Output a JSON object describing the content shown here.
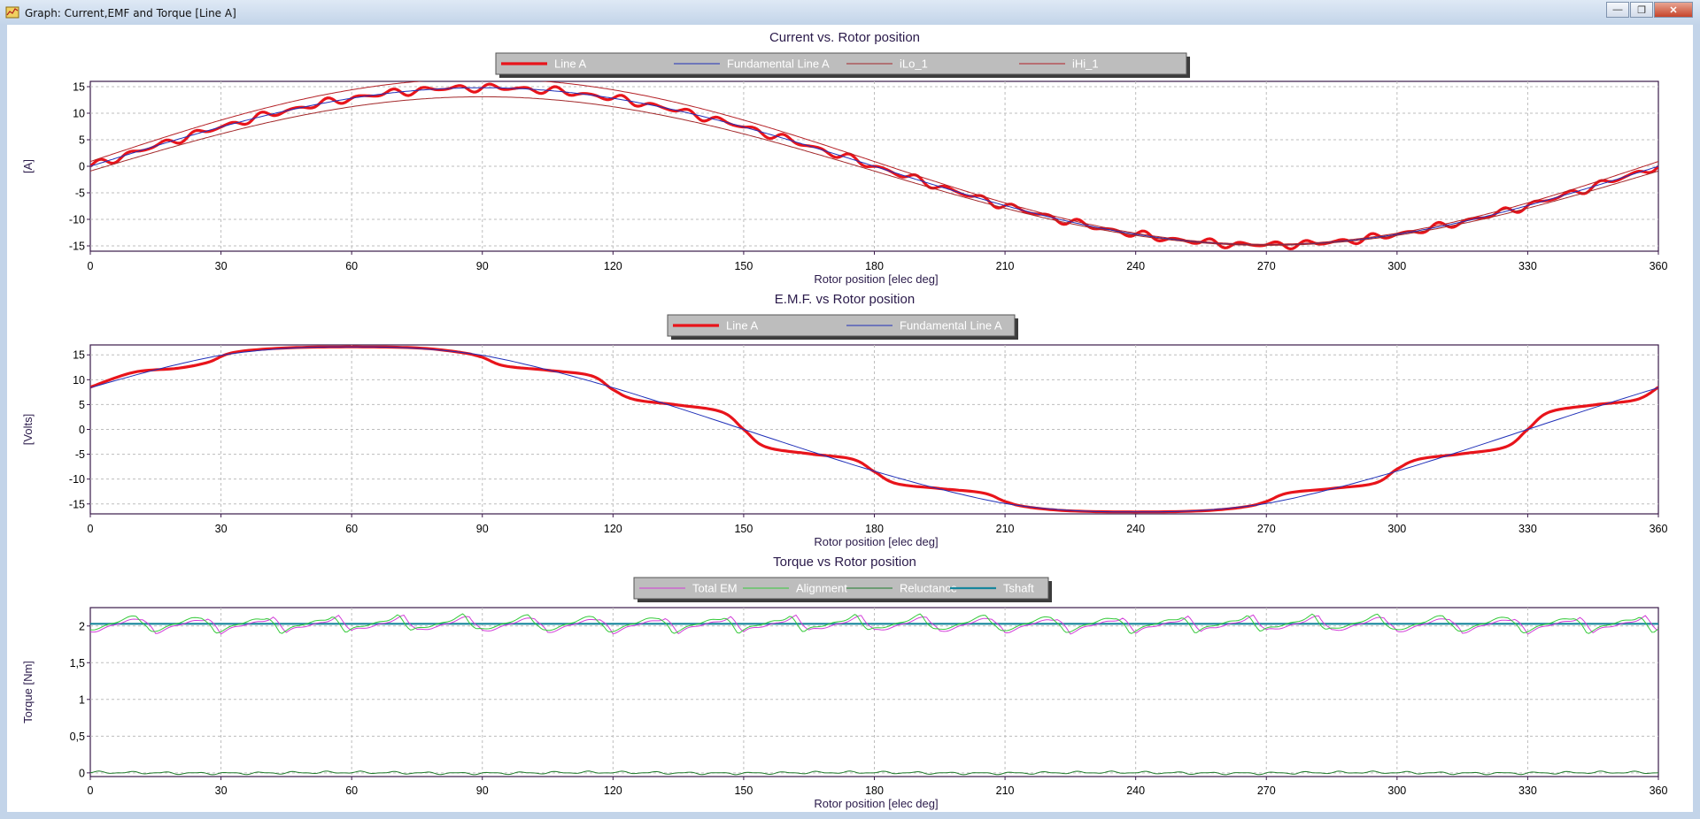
{
  "window": {
    "title": "Graph: Current,EMF and Torque [Line A]",
    "buttons": {
      "minimize": "—",
      "maximize": "❐",
      "close": "✕"
    }
  },
  "chart_data": [
    {
      "type": "line",
      "title": "Current vs. Rotor position",
      "xlabel": "Rotor position [elec deg]",
      "ylabel": "[A]",
      "xlim": [
        0,
        360
      ],
      "ylim": [
        -16,
        16
      ],
      "xticks": [
        "0",
        "30",
        "60",
        "90",
        "120",
        "150",
        "180",
        "210",
        "240",
        "270",
        "300",
        "330",
        "360"
      ],
      "yticks": [
        {
          "v": 15,
          "label": "15"
        },
        {
          "v": 10,
          "label": "10"
        },
        {
          "v": 5,
          "label": "5"
        },
        {
          "v": 0,
          "label": "0"
        },
        {
          "v": -5,
          "label": "-5"
        },
        {
          "v": -10,
          "label": "-10"
        },
        {
          "v": -15,
          "label": "-15"
        }
      ],
      "grid": true,
      "legend_position": "top-center",
      "legend_text_color": "#ffffff",
      "series": [
        {
          "name": "Line A",
          "color": "#e8141b",
          "width": 3.2,
          "amplitude": 14.8,
          "phase_deg": 0,
          "ripple": {
            "amp": 0.85,
            "period_deg": 7.5
          },
          "offset": 0
        },
        {
          "name": "Fundamental Line A",
          "color": "#1f2fb8",
          "width": 1,
          "amplitude": 14.8,
          "phase_deg": 0,
          "offset": 0
        },
        {
          "name": "iLo_1",
          "color": "#a3282a",
          "width": 1,
          "amplitude": 14.0,
          "phase_deg": 0,
          "offset": -0.9
        },
        {
          "name": "iHi_1",
          "color": "#b42026",
          "width": 1,
          "amplitude": 15.6,
          "phase_deg": 0,
          "offset": 0.9
        }
      ]
    },
    {
      "type": "line",
      "title": "E.M.F. vs Rotor position",
      "xlabel": "Rotor position [elec deg]",
      "ylabel": "[Volts]",
      "xlim": [
        0,
        360
      ],
      "ylim": [
        -17,
        17
      ],
      "xticks": [
        "0",
        "30",
        "60",
        "90",
        "120",
        "150",
        "180",
        "210",
        "240",
        "270",
        "300",
        "330",
        "360"
      ],
      "yticks": [
        {
          "v": 15,
          "label": "15"
        },
        {
          "v": 10,
          "label": "10"
        },
        {
          "v": 5,
          "label": "5"
        },
        {
          "v": 0,
          "label": "0"
        },
        {
          "v": -5,
          "label": "-5"
        },
        {
          "v": -10,
          "label": "-10"
        },
        {
          "v": -15,
          "label": "-15"
        }
      ],
      "grid": true,
      "legend_position": "top-center",
      "legend_text_color": "#ffffff",
      "series": [
        {
          "name": "Line A",
          "color": "#e8141b",
          "width": 3.2,
          "x": [
            0,
            10,
            20,
            27,
            33,
            45,
            60,
            75,
            85,
            90,
            95,
            105,
            115,
            120,
            125,
            135,
            145,
            150,
            155,
            165,
            175,
            180,
            185,
            195,
            205,
            210,
            215,
            225,
            240,
            255,
            265,
            270,
            275,
            285,
            295,
            300,
            305,
            315,
            325,
            330,
            335,
            345,
            355,
            360
          ],
          "y": [
            8.5,
            11.5,
            12.3,
            13.5,
            15.5,
            16.4,
            16.6,
            16.4,
            15.5,
            14.5,
            12.8,
            11.9,
            10.8,
            8.0,
            6.0,
            4.9,
            3.5,
            0,
            -3.5,
            -4.9,
            -6.0,
            -8.5,
            -10.9,
            -11.9,
            -12.8,
            -14.5,
            -15.6,
            -16.4,
            -16.6,
            -16.4,
            -15.6,
            -14.5,
            -12.8,
            -11.9,
            -10.8,
            -8.0,
            -6.0,
            -4.9,
            -3.5,
            0,
            3.5,
            4.9,
            6.0,
            8.5
          ]
        },
        {
          "name": "Fundamental Line A",
          "color": "#1f2fb8",
          "width": 1,
          "x": [
            0,
            15,
            30,
            45,
            60,
            75,
            90,
            105,
            120,
            135,
            150,
            165,
            180,
            195,
            210,
            225,
            240,
            255,
            270,
            285,
            300,
            315,
            330,
            345,
            360
          ],
          "y": [
            8.4,
            12.0,
            14.9,
            16.3,
            16.6,
            16.3,
            14.9,
            12.0,
            8.4,
            4.3,
            0,
            -4.3,
            -8.4,
            -12.0,
            -14.9,
            -16.3,
            -16.6,
            -16.3,
            -14.9,
            -12.0,
            -8.4,
            -4.3,
            0,
            4.3,
            8.4
          ]
        }
      ]
    },
    {
      "type": "line",
      "title": "Torque vs Rotor position",
      "xlabel": "Rotor position [elec deg]",
      "ylabel": "Torque [Nm]",
      "xlim": [
        0,
        360
      ],
      "ylim": [
        -0.05,
        2.25
      ],
      "xticks": [
        "0",
        "30",
        "60",
        "90",
        "120",
        "150",
        "180",
        "210",
        "240",
        "270",
        "300",
        "330",
        "360"
      ],
      "yticks": [
        {
          "v": 2,
          "label": "2"
        },
        {
          "v": 1.5,
          "label": "1,5"
        },
        {
          "v": 1,
          "label": "1"
        },
        {
          "v": 0.5,
          "label": "0,5"
        },
        {
          "v": 0,
          "label": "0"
        }
      ],
      "grid": true,
      "legend_position": "top-center",
      "legend_text_color": "#ffffff",
      "series": [
        {
          "name": "Total EM",
          "color": "#d23cd8",
          "width": 1,
          "mean": 2.02,
          "sawtooth": {
            "amp": 0.13,
            "period_deg": 15
          }
        },
        {
          "name": "Alignment",
          "color": "#35c93a",
          "width": 1,
          "mean": 2.03,
          "sawtooth": {
            "amp": 0.14,
            "period_deg": 15
          }
        },
        {
          "name": "Reluctance",
          "color": "#1f7a2a",
          "width": 1,
          "mean": 0.0,
          "ripple": {
            "amp": 0.025,
            "period_deg": 7.5
          }
        },
        {
          "name": "Tshaft",
          "color": "#16869c",
          "width": 2.2,
          "mean": 2.03
        }
      ],
      "reference_line": {
        "y": 2.03,
        "color": "#1f2fb8"
      }
    }
  ]
}
